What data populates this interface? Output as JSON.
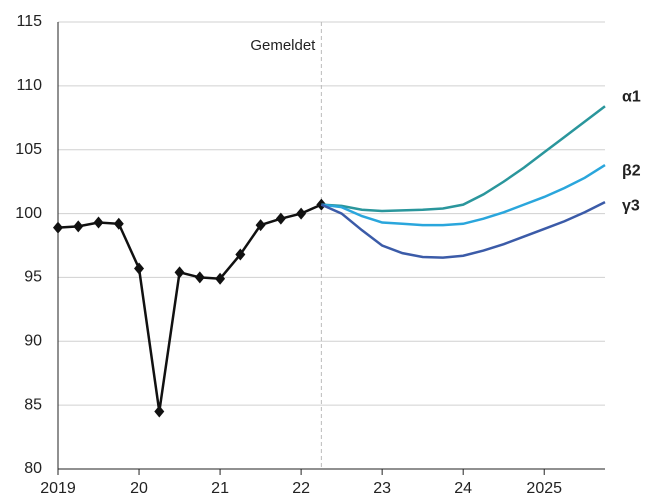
{
  "chart_data": {
    "type": "line",
    "annotation": {
      "text": "Gemeldet",
      "x": 2022.25
    },
    "x": [
      2019,
      2019.25,
      2019.5,
      2019.75,
      2020,
      2020.25,
      2020.5,
      2020.75,
      2021,
      2021.25,
      2021.5,
      2021.75,
      2022,
      2022.25,
      2022.5,
      2022.75,
      2023,
      2023.25,
      2023.5,
      2023.75,
      2024,
      2024.25,
      2024.5,
      2024.75,
      2025,
      2025.25,
      2025.5,
      2025.75
    ],
    "series": [
      {
        "color": "#111111",
        "markers": true,
        "values": [
          98.9,
          99.0,
          99.3,
          99.2,
          95.7,
          84.5,
          95.4,
          95.0,
          94.9,
          96.8,
          99.1,
          99.6,
          100.0,
          100.7,
          null,
          null,
          null,
          null,
          null,
          null,
          null,
          null,
          null,
          null,
          null,
          null,
          null,
          null
        ]
      },
      {
        "name": "α1",
        "color": "#2a969c",
        "values": [
          null,
          null,
          null,
          null,
          null,
          null,
          null,
          null,
          null,
          null,
          null,
          null,
          null,
          100.7,
          100.6,
          100.3,
          100.2,
          100.25,
          100.3,
          100.4,
          100.7,
          101.5,
          102.5,
          103.6,
          104.8,
          106.0,
          107.2,
          108.4
        ]
      },
      {
        "name": "β2",
        "color": "#2aa6dc",
        "values": [
          null,
          null,
          null,
          null,
          null,
          null,
          null,
          null,
          null,
          null,
          null,
          null,
          null,
          100.7,
          100.5,
          99.8,
          99.3,
          99.2,
          99.1,
          99.1,
          99.2,
          99.6,
          100.1,
          100.7,
          101.3,
          102.0,
          102.8,
          103.8
        ]
      },
      {
        "name": "γ3",
        "color": "#3b5ba8",
        "values": [
          null,
          null,
          null,
          null,
          null,
          null,
          null,
          null,
          null,
          null,
          null,
          null,
          null,
          100.7,
          100.0,
          98.7,
          97.5,
          96.9,
          96.6,
          96.55,
          96.7,
          97.1,
          97.6,
          98.2,
          98.8,
          99.4,
          100.1,
          100.9
        ]
      }
    ],
    "xlim": [
      2019,
      2025.75
    ],
    "xticks": [
      2019,
      {
        "value": 2020,
        "label": "20"
      },
      {
        "value": 2021,
        "label": "21"
      },
      {
        "value": 2022,
        "label": "22"
      },
      {
        "value": 2023,
        "label": "23"
      },
      {
        "value": 2024,
        "label": "24"
      },
      2025
    ],
    "ylim": [
      80,
      115
    ],
    "yticks": [
      80,
      85,
      90,
      95,
      100,
      105,
      110,
      115
    ],
    "grid": true
  }
}
